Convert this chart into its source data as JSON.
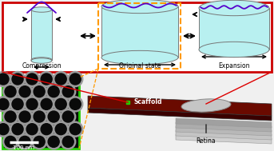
{
  "bg_color": "#f0f0f0",
  "top_box_edgecolor": "#cc0000",
  "orange_box_color": "#ff9900",
  "cyan_fill": "#b8f0f0",
  "cyan_dots": "#99e8e8",
  "protein_color": "#5500cc",
  "label_compression": "Compression",
  "label_original": "Original state",
  "label_expansion": "Expansion",
  "label_scaffold": "Scaffold",
  "label_retina": "Retina",
  "label_scalebar": "100 nm",
  "green_box_color": "#22cc00",
  "scaffold_dark": "#5a0000",
  "arrow_color": "#111111"
}
